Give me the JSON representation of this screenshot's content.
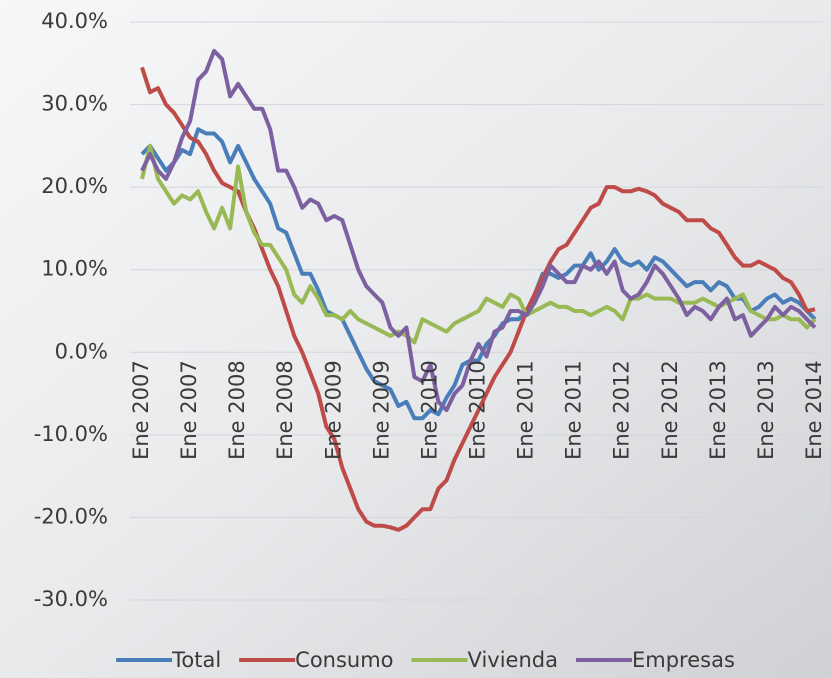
{
  "chart_data": {
    "type": "line",
    "categories": [
      "Ene 2007",
      null,
      null,
      null,
      null,
      null,
      "Ene 2007",
      null,
      null,
      null,
      null,
      null,
      "Ene 2008",
      null,
      null,
      null,
      null,
      null,
      "Ene 2008",
      null,
      null,
      null,
      null,
      null,
      "Ene 2009",
      null,
      null,
      null,
      null,
      null,
      "Ene 2009",
      null,
      null,
      null,
      null,
      null,
      "Ene 2010",
      null,
      null,
      null,
      null,
      null,
      "Ene 2010",
      null,
      null,
      null,
      null,
      null,
      "Ene 2011",
      null,
      null,
      null,
      null,
      null,
      "Ene 2011",
      null,
      null,
      null,
      null,
      null,
      "Ene 2012",
      null,
      null,
      null,
      null,
      null,
      "Ene 2012",
      null,
      null,
      null,
      null,
      null,
      "Ene 2013",
      null,
      null,
      null,
      null,
      null,
      "Ene 2013",
      null,
      null,
      null,
      null,
      null,
      "Ene 2014"
    ],
    "series": [
      {
        "name": "Total",
        "color": "#4a7ebb",
        "values": [
          24,
          25,
          23.5,
          22,
          23,
          24.5,
          24,
          27,
          26.5,
          26.5,
          25.5,
          23,
          25,
          23,
          21,
          19.5,
          18,
          15,
          14.5,
          12,
          9.5,
          9.5,
          7.5,
          5,
          4.5,
          4,
          2,
          0,
          -2,
          -3.5,
          -4,
          -4.5,
          -6.5,
          -6,
          -8,
          -8,
          -7,
          -7.5,
          -5.5,
          -4,
          -1.5,
          -1,
          -1,
          1,
          2,
          3.5,
          4,
          4,
          5,
          7,
          9.5,
          9.5,
          9,
          9.5,
          10.5,
          10.5,
          12,
          10,
          11,
          12.5,
          11,
          10.5,
          11,
          10,
          11.5,
          11,
          10,
          9,
          8,
          8.5,
          8.5,
          7.5,
          8.5,
          8,
          6.5,
          6.5,
          5,
          5.5,
          6.5,
          7,
          6,
          6.5,
          6,
          5,
          4
        ]
      },
      {
        "name": "Consumo",
        "color": "#be4b48",
        "values": [
          34.5,
          31.5,
          32,
          30,
          29,
          27.5,
          26,
          25.5,
          24,
          22,
          20.5,
          20,
          19.5,
          17,
          15,
          12.5,
          10,
          8,
          5,
          2,
          0,
          -2.5,
          -5,
          -9,
          -10.5,
          -14,
          -16.5,
          -19,
          -20.5,
          -21,
          -21,
          -21.2,
          -21.5,
          -21,
          -20,
          -19,
          -19,
          -16.5,
          -15.5,
          -13,
          -11,
          -9,
          -7,
          -5,
          -3,
          -1.5,
          0,
          2.5,
          5,
          7,
          9,
          11,
          12.5,
          13,
          14.5,
          16,
          17.5,
          18,
          20,
          20,
          19.5,
          19.5,
          19.8,
          19.5,
          19,
          18,
          17.5,
          17,
          16,
          16,
          16,
          15,
          14.5,
          13,
          11.5,
          10.5,
          10.5,
          11,
          10.5,
          10,
          9,
          8.5,
          7,
          5,
          5.2
        ]
      },
      {
        "name": "Vivienda",
        "color": "#98b954",
        "values": [
          21,
          25,
          21,
          19.5,
          18,
          19,
          18.5,
          19.5,
          17,
          15,
          17.5,
          15,
          22.5,
          17,
          14.5,
          13,
          13,
          11.5,
          10,
          7,
          6,
          8,
          6.5,
          4.5,
          4.5,
          4,
          5,
          4,
          3.5,
          3,
          2.5,
          2,
          2.5,
          2,
          1.2,
          4,
          3.5,
          3,
          2.5,
          3.5,
          4,
          4.5,
          5,
          6.5,
          6,
          5.5,
          7,
          6.5,
          4.5,
          5,
          5.5,
          6,
          5.5,
          5.5,
          5,
          5,
          4.5,
          5,
          5.5,
          5,
          4,
          6.5,
          6.5,
          7,
          6.5,
          6.5,
          6.5,
          6,
          6,
          6,
          6.5,
          6,
          5.5,
          6,
          6.5,
          7,
          5,
          4.5,
          4,
          4,
          4.5,
          4,
          4,
          3,
          4
        ]
      },
      {
        "name": "Empresas",
        "color": "#7d60a0",
        "values": [
          22,
          24,
          22,
          21,
          23,
          26,
          28,
          33,
          34,
          36.5,
          35.5,
          31,
          32.5,
          31,
          29.5,
          29.5,
          27,
          22,
          22,
          20,
          17.5,
          18.5,
          18,
          16,
          16.5,
          16,
          13,
          10,
          8,
          7,
          6,
          3,
          2,
          3,
          -3,
          -3.5,
          -1.5,
          -6,
          -7,
          -5,
          -4,
          -1,
          1,
          -0.5,
          2.5,
          3,
          5,
          5,
          4.5,
          6,
          8,
          10.5,
          9.5,
          8.5,
          8.5,
          10.5,
          10,
          11,
          9.5,
          11,
          7.5,
          6.5,
          7,
          8.5,
          10.5,
          9.5,
          8,
          6.5,
          4.5,
          5.5,
          5,
          4,
          5.5,
          6.5,
          4,
          4.5,
          2,
          3,
          4,
          5.5,
          4.5,
          5.5,
          5,
          4,
          3
        ]
      }
    ],
    "ylim": [
      -30,
      40
    ],
    "yticks": [
      {
        "value": -30,
        "label": "-30.0%"
      },
      {
        "value": -20,
        "label": "-20.0%"
      },
      {
        "value": -10,
        "label": "-10.0%"
      },
      {
        "value": 0,
        "label": "0.0%"
      },
      {
        "value": 10,
        "label": "10.0%"
      },
      {
        "value": 20,
        "label": "20.0%"
      },
      {
        "value": 30,
        "label": "30.0%"
      },
      {
        "value": 40,
        "label": "40.0%"
      }
    ],
    "grid": true,
    "legend": "bottom"
  }
}
